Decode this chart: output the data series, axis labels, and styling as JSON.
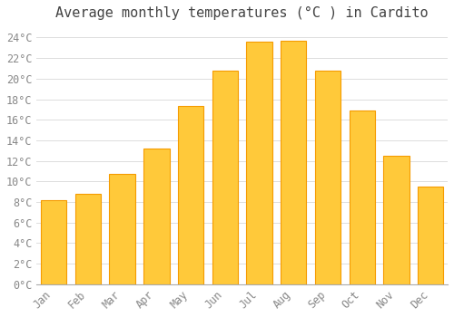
{
  "title": "Average monthly temperatures (°C ) in Cardito",
  "months": [
    "Jan",
    "Feb",
    "Mar",
    "Apr",
    "May",
    "Jun",
    "Jul",
    "Aug",
    "Sep",
    "Oct",
    "Nov",
    "Dec"
  ],
  "temperatures": [
    8.2,
    8.8,
    10.7,
    13.2,
    17.3,
    20.8,
    23.6,
    23.7,
    20.8,
    16.9,
    12.5,
    9.5
  ],
  "bar_color_center": "#FFC93A",
  "bar_color_edge": "#F59B00",
  "background_color": "#FFFFFF",
  "plot_bg_color": "#FFFFFF",
  "grid_color": "#DDDDDD",
  "tick_label_color": "#888888",
  "title_color": "#444444",
  "ylim": [
    0,
    25
  ],
  "ytick_step": 2,
  "title_fontsize": 11,
  "tick_fontsize": 8.5,
  "bar_width": 0.75
}
